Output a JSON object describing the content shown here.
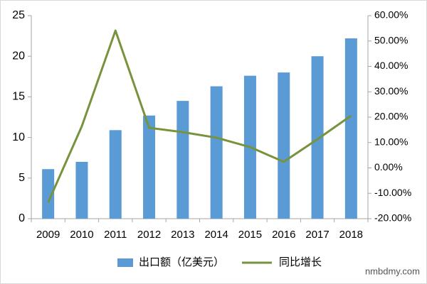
{
  "chart_data": {
    "type": "bar",
    "categories": [
      "2009",
      "2010",
      "2011",
      "2012",
      "2013",
      "2014",
      "2015",
      "2016",
      "2017",
      "2018"
    ],
    "series": [
      {
        "name": "出口额（亿美元）",
        "type": "bar",
        "color": "#5b9bd5",
        "values": [
          6.1,
          7.0,
          10.9,
          12.7,
          14.5,
          16.3,
          17.6,
          18.0,
          20.0,
          22.2
        ]
      },
      {
        "name": "同比增长",
        "type": "line",
        "axis": "y2",
        "color": "#77933c",
        "values": [
          -13.6,
          16.4,
          54.1,
          15.8,
          14.1,
          11.9,
          8.2,
          2.4,
          11.3,
          20.6
        ]
      }
    ],
    "ylim": [
      0,
      25
    ],
    "yticks": [
      0,
      5,
      10,
      15,
      20,
      25
    ],
    "y2lim": [
      -20,
      60
    ],
    "y2ticks": [
      {
        "value": -20,
        "label": "-20.00%"
      },
      {
        "value": -10,
        "label": "-10.00%"
      },
      {
        "value": 0,
        "label": "0.00%"
      },
      {
        "value": 10,
        "label": "10.00%"
      },
      {
        "value": 20,
        "label": "20.00%"
      },
      {
        "value": 30,
        "label": "30.00%"
      },
      {
        "value": 40,
        "label": "40.00%"
      },
      {
        "value": 50,
        "label": "50.00%"
      },
      {
        "value": 60,
        "label": "60.00%"
      }
    ],
    "grid": false,
    "legend": "bottom",
    "watermark": "nmbdmy.com"
  }
}
